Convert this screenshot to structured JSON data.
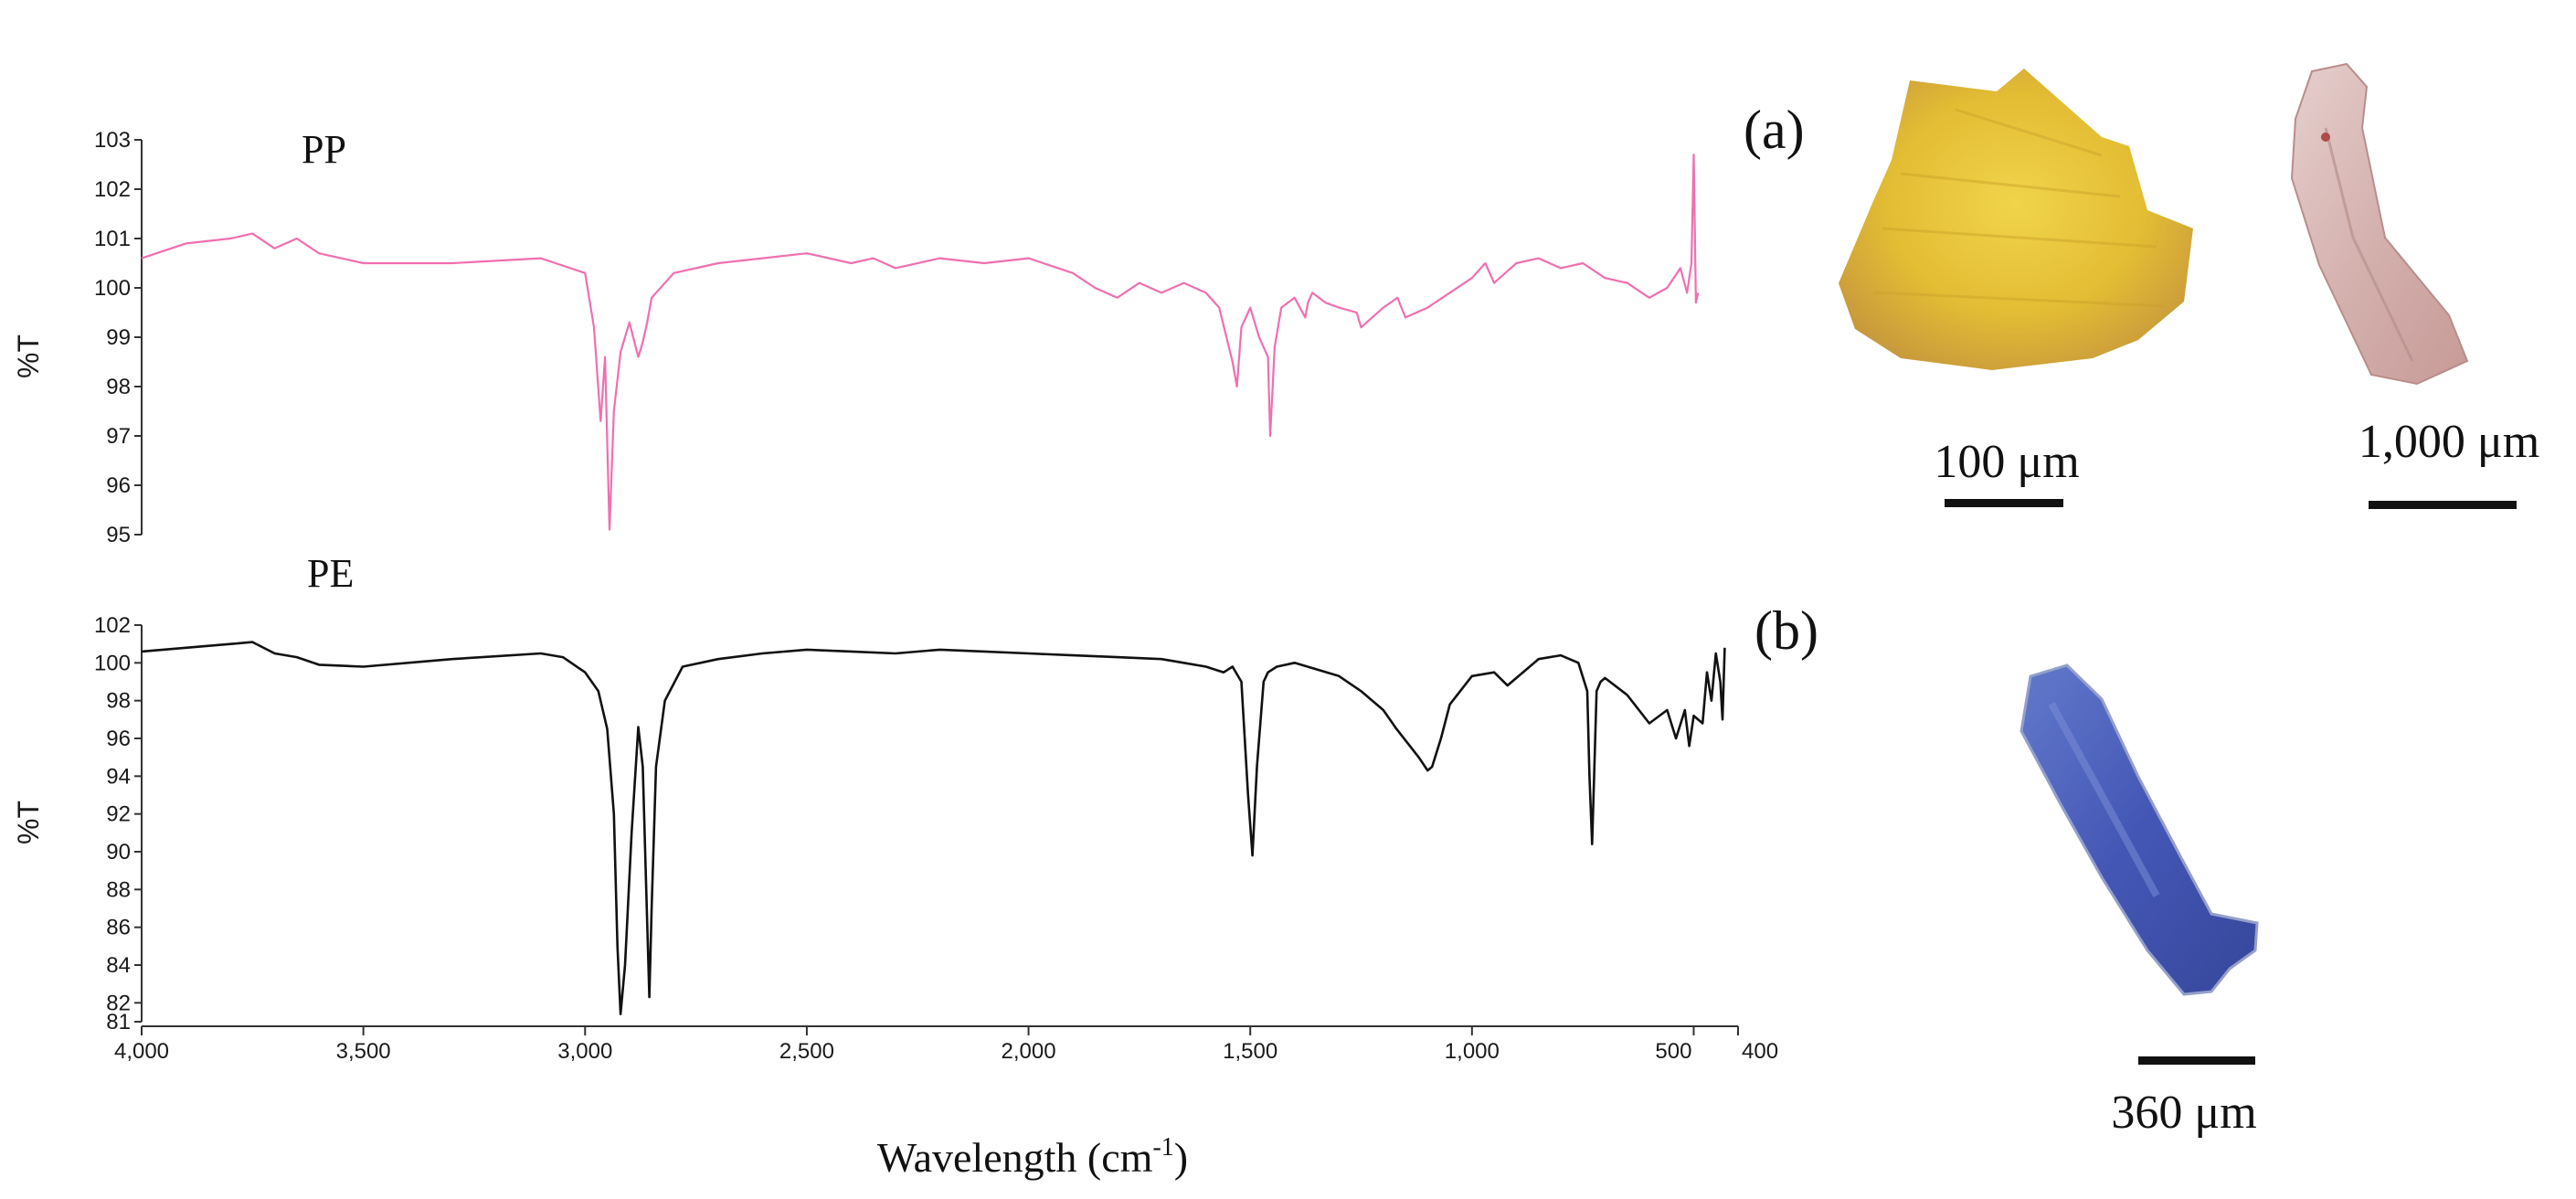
{
  "figure": {
    "panel_a_label": "(a)",
    "panel_b_label": "(b)",
    "xlabel_text": "Wavelength (cm",
    "xlabel_sup": "-1",
    "xlabel_close": ")",
    "scale_bars": {
      "pp_yellow": "100 μm",
      "pp_pink": "1,000 μm",
      "pe_blue": "360 μm"
    },
    "photo_colors": {
      "yellow_fragment": "#e8c53a",
      "pink_fiber": "#d8b6b4",
      "blue_fiber": "#3b4fb0"
    }
  },
  "chart_data": [
    {
      "type": "line",
      "title": "PP",
      "xlabel": "Wavelength (cm-1)",
      "ylabel": "%T",
      "color": "#f06fb0",
      "xlim": [
        4000,
        400
      ],
      "ylim": [
        95,
        103
      ],
      "xticks": [
        4000,
        3500,
        3000,
        2500,
        2000,
        1500,
        1000,
        500,
        400
      ],
      "xtick_labels": [
        "4,000",
        "3,500",
        "3,000",
        "2,500",
        "2,000",
        "1,500",
        "1,000",
        "500",
        "400"
      ],
      "yticks": [
        95,
        96,
        97,
        98,
        99,
        100,
        101,
        102,
        103
      ],
      "x": [
        4000,
        3900,
        3800,
        3750,
        3700,
        3650,
        3600,
        3500,
        3300,
        3100,
        3000,
        2980,
        2965,
        2955,
        2945,
        2935,
        2920,
        2900,
        2880,
        2870,
        2860,
        2850,
        2800,
        2700,
        2500,
        2400,
        2350,
        2300,
        2200,
        2100,
        2000,
        1900,
        1850,
        1800,
        1750,
        1700,
        1650,
        1600,
        1570,
        1540,
        1530,
        1520,
        1500,
        1480,
        1460,
        1455,
        1445,
        1430,
        1400,
        1376,
        1370,
        1360,
        1330,
        1300,
        1260,
        1250,
        1200,
        1168,
        1150,
        1100,
        1000,
        970,
        950,
        900,
        850,
        800,
        750,
        700,
        650,
        600,
        560,
        530,
        515,
        505,
        500,
        495,
        490
      ],
      "y": [
        100.6,
        100.9,
        101.0,
        101.1,
        100.8,
        101.0,
        100.7,
        100.5,
        100.5,
        100.6,
        100.3,
        99.2,
        97.3,
        98.6,
        95.1,
        97.5,
        98.7,
        99.3,
        98.6,
        98.9,
        99.3,
        99.8,
        100.3,
        100.5,
        100.7,
        100.5,
        100.6,
        100.4,
        100.6,
        100.5,
        100.6,
        100.3,
        100.0,
        99.8,
        100.1,
        99.9,
        100.1,
        99.9,
        99.6,
        98.5,
        98.0,
        99.2,
        99.6,
        99.0,
        98.6,
        97.0,
        98.8,
        99.6,
        99.8,
        99.4,
        99.7,
        99.9,
        99.7,
        99.6,
        99.5,
        99.2,
        99.6,
        99.8,
        99.4,
        99.6,
        100.2,
        100.5,
        100.1,
        100.5,
        100.6,
        100.4,
        100.5,
        100.2,
        100.1,
        99.8,
        100.0,
        100.4,
        99.9,
        100.5,
        102.7,
        99.7,
        99.9
      ]
    },
    {
      "type": "line",
      "title": "PE",
      "xlabel": "Wavelength (cm-1)",
      "ylabel": "%T",
      "color": "#111111",
      "xlim": [
        4000,
        400
      ],
      "ylim": [
        81,
        102
      ],
      "xticks": [
        4000,
        3500,
        3000,
        2500,
        2000,
        1500,
        1000,
        500,
        400
      ],
      "xtick_labels": [
        "4,000",
        "3,500",
        "3,000",
        "2,500",
        "2,000",
        "1,500",
        "1,000",
        "500",
        "400"
      ],
      "yticks": [
        81,
        82,
        84,
        86,
        88,
        90,
        92,
        94,
        96,
        98,
        100,
        102
      ],
      "x": [
        4000,
        3900,
        3800,
        3750,
        3700,
        3650,
        3600,
        3500,
        3300,
        3100,
        3050,
        3000,
        2970,
        2950,
        2935,
        2927,
        2920,
        2910,
        2895,
        2880,
        2870,
        2862,
        2855,
        2850,
        2840,
        2820,
        2780,
        2700,
        2600,
        2500,
        2400,
        2300,
        2200,
        2100,
        2000,
        1900,
        1800,
        1700,
        1650,
        1600,
        1560,
        1540,
        1520,
        1505,
        1495,
        1485,
        1470,
        1460,
        1440,
        1400,
        1300,
        1250,
        1200,
        1170,
        1120,
        1100,
        1090,
        1070,
        1050,
        1000,
        950,
        920,
        880,
        850,
        800,
        760,
        740,
        735,
        729,
        724,
        719,
        710,
        700,
        650,
        600,
        560,
        540,
        520,
        510,
        500,
        480,
        470,
        460,
        450,
        440,
        435,
        430
      ],
      "y": [
        100.6,
        100.8,
        101.0,
        101.1,
        100.5,
        100.3,
        99.9,
        99.8,
        100.2,
        100.5,
        100.3,
        99.5,
        98.5,
        96.5,
        92.0,
        85.0,
        81.4,
        84.0,
        91.0,
        96.6,
        94.5,
        88.0,
        82.3,
        87.0,
        94.5,
        98.0,
        99.8,
        100.2,
        100.5,
        100.7,
        100.6,
        100.5,
        100.7,
        100.6,
        100.5,
        100.4,
        100.3,
        100.2,
        100.0,
        99.8,
        99.5,
        99.8,
        99.0,
        93.0,
        89.8,
        94.5,
        99.0,
        99.5,
        99.8,
        100.0,
        99.3,
        98.5,
        97.5,
        96.5,
        95.0,
        94.3,
        94.5,
        96.0,
        97.8,
        99.3,
        99.5,
        98.8,
        99.6,
        100.2,
        100.4,
        100.0,
        98.5,
        94.0,
        90.4,
        94.5,
        98.5,
        99.0,
        99.2,
        98.3,
        96.8,
        97.5,
        96.0,
        97.5,
        95.6,
        97.2,
        96.8,
        99.5,
        98.0,
        100.5,
        99.0,
        97.0,
        100.8
      ]
    }
  ]
}
